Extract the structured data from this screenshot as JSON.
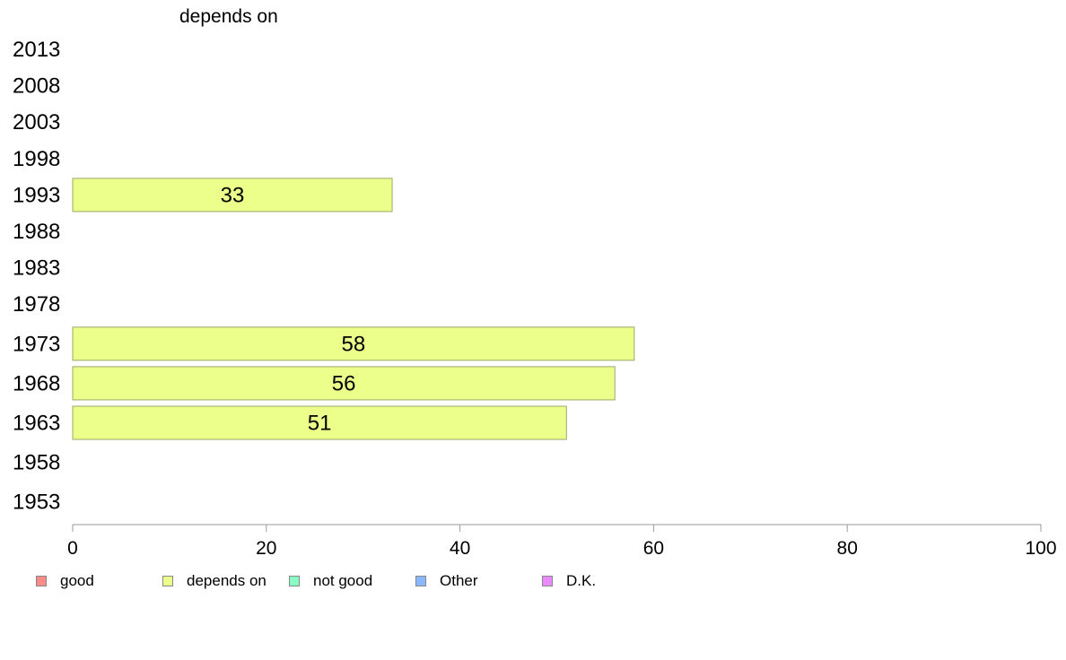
{
  "chart_data": {
    "type": "bar",
    "orientation": "horizontal",
    "title": "depends on",
    "xlabel": "",
    "ylabel": "",
    "xlim": [
      0,
      100
    ],
    "x_ticks": [
      0,
      20,
      40,
      60,
      80,
      100
    ],
    "grid": false,
    "categories": [
      "2013",
      "2008",
      "2003",
      "1998",
      "1993",
      "1988",
      "1983",
      "1978",
      "1973",
      "1968",
      "1963",
      "1958",
      "1953"
    ],
    "series": [
      {
        "name": "depends on",
        "color": "#EBFF8A",
        "values": [
          null,
          null,
          null,
          null,
          33,
          null,
          null,
          null,
          58,
          56,
          51,
          null,
          null
        ]
      }
    ],
    "legend_position": "bottom",
    "legend": [
      {
        "label": "good",
        "color": "#FF8A8A"
      },
      {
        "label": "depends on",
        "color": "#EBFF8A"
      },
      {
        "label": "not good",
        "color": "#8AFFC4"
      },
      {
        "label": "Other",
        "color": "#8AB8FF"
      },
      {
        "label": "D.K.",
        "color": "#EB8AFF"
      }
    ]
  }
}
